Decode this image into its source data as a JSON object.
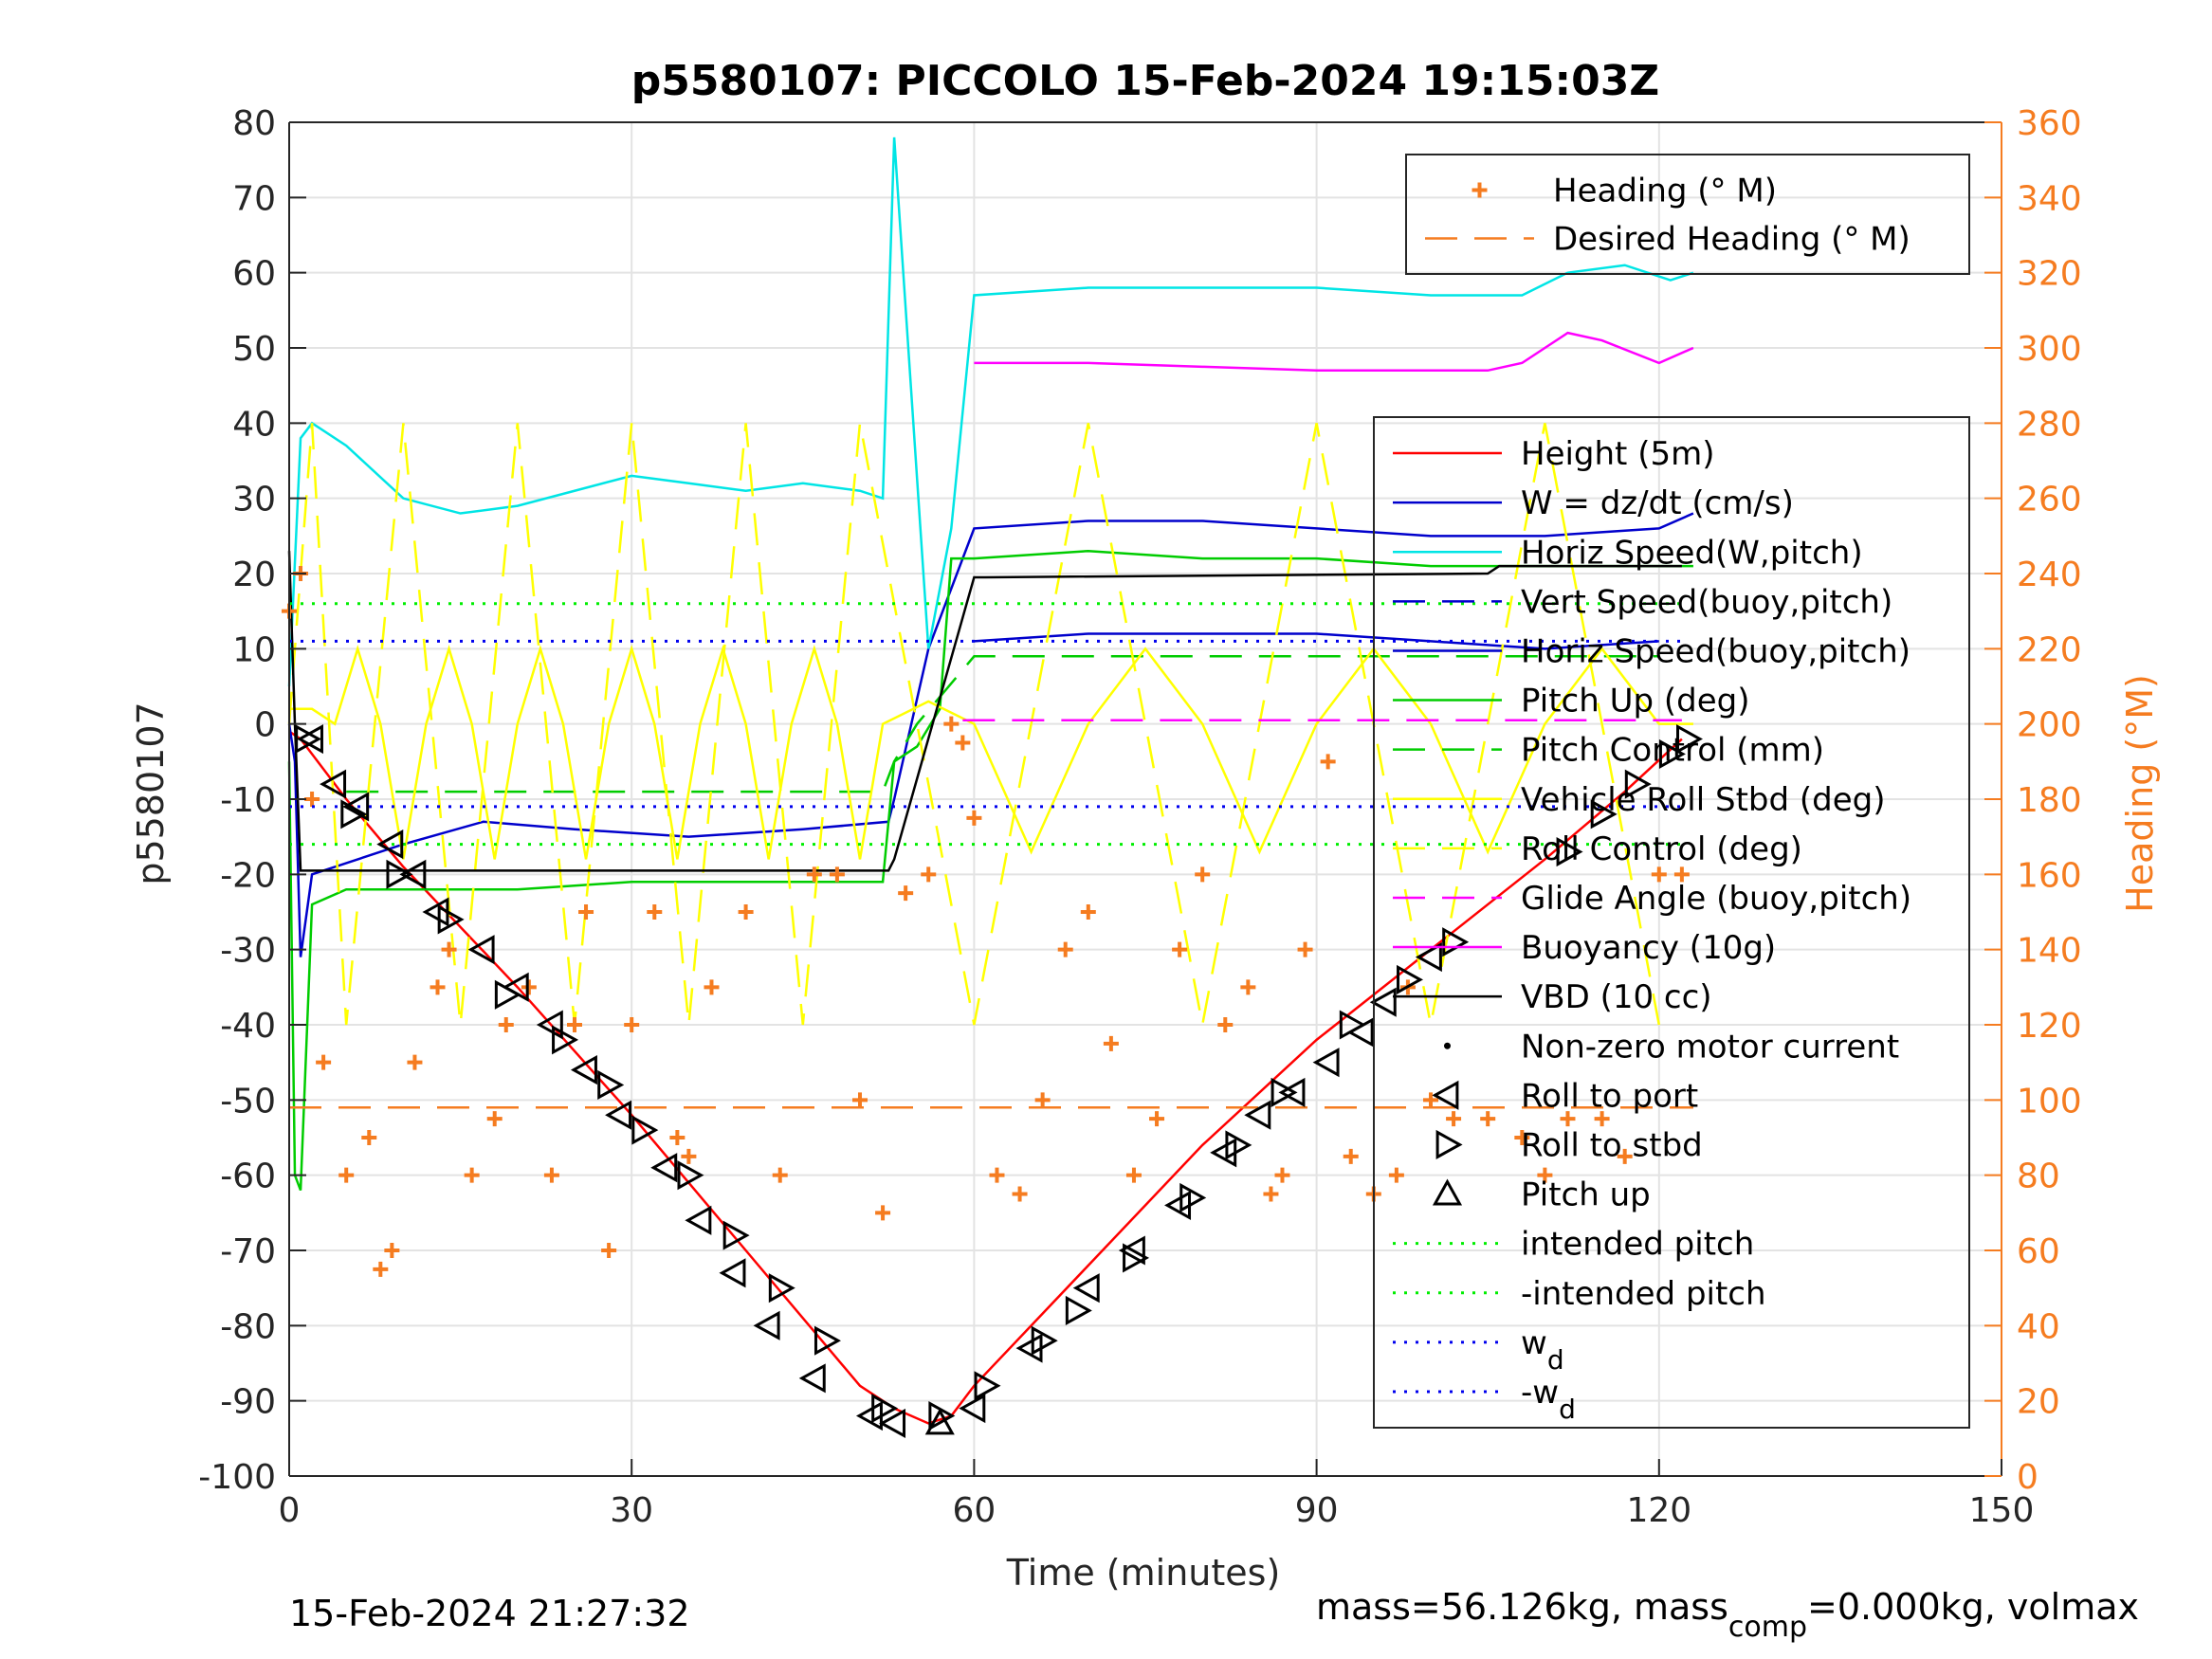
{
  "chart_data": {
    "type": "line",
    "title": "p5580107: PICCOLO 15-Feb-2024 19:15:03Z",
    "xlabel": "Time (minutes)",
    "ylabel": "p5580107",
    "ylabel_right": "Heading (°M)",
    "xlim": [
      0,
      150
    ],
    "ylim": [
      -100,
      80
    ],
    "ylim_right": [
      0,
      360
    ],
    "xticks": [
      "0",
      "30",
      "60",
      "90",
      "120",
      "150"
    ],
    "yticks": [
      "80",
      "70",
      "60",
      "50",
      "40",
      "30",
      "20",
      "10",
      "0",
      "-10",
      "-20",
      "-30",
      "-40",
      "-50",
      "-60",
      "-70",
      "-80",
      "-90",
      "-100"
    ],
    "yticks_right": [
      "360",
      "340",
      "320",
      "300",
      "280",
      "260",
      "240",
      "220",
      "200",
      "180",
      "160",
      "140",
      "120",
      "100",
      "80",
      "60",
      "40",
      "20",
      "0"
    ],
    "grid": true,
    "footer_left": "15-Feb-2024 21:27:32",
    "footer_right": "mass=56.126kg, mass",
    "footer_right_sub": "comp",
    "footer_right_tail": "=0.000kg, volmax",
    "legend_top": {
      "placement": "top-right",
      "entries": [
        {
          "label": "Heading (° M)",
          "color": "#f57c20",
          "style": "plus"
        },
        {
          "label": "Desired Heading (° M)",
          "color": "#f57c20",
          "style": "dashed"
        }
      ]
    },
    "legend_main": {
      "placement": "right",
      "entries": [
        {
          "label": "Height (5m)",
          "color": "#ff0000",
          "style": "solid"
        },
        {
          "label": "W = dz/dt (cm/s)",
          "color": "#0000cc",
          "style": "solid"
        },
        {
          "label": "Horiz Speed(W,pitch)",
          "color": "#00e5e5",
          "style": "solid"
        },
        {
          "label": "Vert Speed(buoy,pitch)",
          "color": "#0000cc",
          "style": "dashed"
        },
        {
          "label": "Horiz Speed(buoy,pitch)",
          "color": "#0000cc",
          "style": "solid"
        },
        {
          "label": "Pitch Up (deg)",
          "color": "#00cc00",
          "style": "solid"
        },
        {
          "label": "Pitch Control (mm)",
          "color": "#00cc00",
          "style": "dashed"
        },
        {
          "label": "Vehicle Roll Stbd (deg)",
          "color": "#ffff00",
          "style": "solid"
        },
        {
          "label": "Roll Control (deg)",
          "color": "#ffff00",
          "style": "dashed"
        },
        {
          "label": "Glide Angle (buoy,pitch)",
          "color": "#ff00ff",
          "style": "dashed"
        },
        {
          "label": "Buoyancy (10g)",
          "color": "#ff00ff",
          "style": "solid"
        },
        {
          "label": "VBD (10 cc)",
          "color": "#000000",
          "style": "solid"
        },
        {
          "label": "Non-zero motor current",
          "color": "#000000",
          "style": "dot"
        },
        {
          "label": "Roll to port",
          "color": "#000000",
          "style": "tri-left"
        },
        {
          "label": "Roll to stbd",
          "color": "#000000",
          "style": "tri-right"
        },
        {
          "label": "Pitch up",
          "color": "#000000",
          "style": "tri-up"
        },
        {
          "label": "intended pitch",
          "color": "#00ee00",
          "style": "dotted"
        },
        {
          "label": "-intended pitch",
          "color": "#00ee00",
          "style": "dotted"
        },
        {
          "label": "w",
          "sub": "d",
          "color": "#0000ee",
          "style": "dotted"
        },
        {
          "label": "-w",
          "sub": "d",
          "color": "#0000ee",
          "style": "dotted"
        }
      ]
    },
    "series": [
      {
        "name": "Height (5m)",
        "color": "#ff0000",
        "x": [
          0,
          1,
          5,
          10,
          20,
          30,
          40,
          50,
          53,
          56,
          58,
          60,
          70,
          80,
          90,
          100,
          110,
          117,
          122
        ],
        "y": [
          -1,
          -2,
          -10,
          -19,
          -35,
          -52,
          -70,
          -88,
          -91,
          -93,
          -92,
          -88,
          -72,
          -56,
          -42,
          -30,
          -18,
          -9,
          -2
        ]
      },
      {
        "name": "W = dz/dt (cm/s)",
        "color": "#0000cc",
        "x": [
          0,
          0.5,
          1,
          2,
          4,
          10,
          17,
          25,
          35,
          45,
          52.5,
          53,
          56,
          60,
          70,
          80,
          90,
          100,
          110,
          120,
          123
        ],
        "y": [
          0,
          -5,
          -31,
          -20,
          -19,
          -16,
          -13,
          -14,
          -15,
          -14,
          -13,
          -10,
          10,
          26,
          27,
          27,
          26,
          25,
          25,
          26,
          28
        ]
      },
      {
        "name": "Horiz Speed(W,pitch)",
        "color": "#00e5e5",
        "x": [
          0,
          1,
          2,
          5,
          10,
          15,
          20,
          25,
          30,
          35,
          40,
          45,
          50,
          52,
          53,
          56,
          58,
          60,
          70,
          80,
          90,
          100,
          108,
          112,
          117,
          121,
          123
        ],
        "y": [
          5,
          38,
          40,
          37,
          30,
          28,
          29,
          31,
          33,
          32,
          31,
          32,
          31,
          30,
          78,
          10,
          26,
          57,
          58,
          58,
          58,
          57,
          57,
          60,
          61,
          59,
          60
        ]
      },
      {
        "name": "Horiz Speed(buoy,pitch)",
        "color": "#0000cc",
        "x": [
          60,
          70,
          80,
          90,
          100,
          110,
          120
        ],
        "y": [
          11,
          12,
          12,
          12,
          11,
          10,
          11
        ]
      },
      {
        "name": "Pitch Up (deg)",
        "color": "#00cc00",
        "x": [
          0,
          0.5,
          1,
          2,
          5,
          10,
          20,
          30,
          40,
          52,
          53,
          55,
          57,
          58,
          60,
          70,
          80,
          90,
          100,
          110,
          120,
          123
        ],
        "y": [
          -5,
          -60,
          -62,
          -24,
          -22,
          -22,
          -22,
          -21,
          -21,
          -21,
          -5,
          -3,
          2,
          22,
          22,
          23,
          22,
          22,
          21,
          21,
          21,
          21
        ]
      },
      {
        "name": "Pitch Control (mm)",
        "color": "#00cc00",
        "x": [
          5,
          52,
          53,
          55,
          60,
          120
        ],
        "y": [
          -9,
          -9,
          -5,
          0,
          9,
          9
        ]
      },
      {
        "name": "Vehicle Roll Stbd (deg)",
        "color": "#ffff00",
        "x": [
          0,
          2,
          4,
          6,
          8,
          10,
          12,
          14,
          16,
          18,
          20,
          22,
          24,
          26,
          28,
          30,
          32,
          34,
          36,
          38,
          40,
          42,
          44,
          46,
          48,
          50,
          52,
          56,
          60,
          65,
          70,
          75,
          80,
          85,
          90,
          95,
          100,
          105,
          110,
          115,
          120,
          123
        ],
        "y": [
          2,
          2,
          0,
          10,
          0,
          -18,
          0,
          10,
          0,
          -18,
          0,
          10,
          0,
          -18,
          0,
          10,
          0,
          -18,
          0,
          10,
          0,
          -18,
          0,
          10,
          0,
          -18,
          0,
          3,
          0,
          -17,
          0,
          10,
          0,
          -17,
          0,
          10,
          0,
          -17,
          0,
          10,
          0,
          0
        ]
      },
      {
        "name": "Roll Control (deg)",
        "color": "#ffff00",
        "x": [
          0,
          2,
          5,
          10,
          15,
          20,
          25,
          30,
          35,
          40,
          45,
          50,
          60,
          70,
          80,
          90,
          100,
          110,
          120
        ],
        "y": [
          0,
          40,
          -40,
          40,
          -40,
          40,
          -40,
          40,
          -40,
          40,
          -40,
          40,
          -40,
          40,
          -40,
          40,
          -40,
          40,
          -40
        ]
      },
      {
        "name": "Glide Angle (buoy,pitch)",
        "color": "#ff00ff",
        "x": [
          59,
          122
        ],
        "y": [
          0.5,
          0.5
        ]
      },
      {
        "name": "Buoyancy (10g)",
        "color": "#ff00ff",
        "x": [
          60,
          70,
          80,
          90,
          100,
          105,
          108,
          110,
          112,
          115,
          120,
          123
        ],
        "y": [
          48,
          48,
          47.5,
          47,
          47,
          47,
          48,
          50,
          52,
          51,
          48,
          50
        ]
      },
      {
        "name": "VBD (10 cc)",
        "color": "#000000",
        "x": [
          0,
          0.5,
          1,
          2,
          52.5,
          53,
          60,
          61,
          105,
          106,
          122
        ],
        "y": [
          23,
          0,
          -19.5,
          -19.5,
          -19.5,
          -18,
          19.5,
          19.5,
          20,
          21,
          21
        ]
      },
      {
        "name": "Heading (° M)",
        "color": "#f57c20",
        "x": [
          0,
          1,
          2,
          3,
          5,
          7,
          8,
          9,
          11,
          13,
          14,
          16,
          18,
          19,
          21,
          23,
          25,
          26,
          28,
          30,
          32,
          34,
          35,
          37,
          40,
          43,
          46,
          48,
          50,
          52,
          54,
          56,
          58,
          59,
          60,
          62,
          64,
          66,
          68,
          70,
          72,
          74,
          76,
          78,
          80,
          82,
          84,
          86,
          87,
          89,
          91,
          93,
          95,
          97,
          98,
          100,
          102,
          105,
          108,
          110,
          112,
          115,
          117,
          120,
          122
        ],
        "y": [
          230,
          240,
          180,
          110,
          80,
          90,
          55,
          60,
          110,
          130,
          140,
          80,
          95,
          120,
          130,
          80,
          120,
          150,
          60,
          120,
          150,
          90,
          85,
          130,
          150,
          80,
          160,
          160,
          100,
          70,
          155,
          160,
          200,
          195,
          175,
          80,
          75,
          100,
          140,
          150,
          115,
          80,
          95,
          140,
          160,
          120,
          130,
          75,
          80,
          140,
          190,
          85,
          75,
          80,
          130,
          100,
          95,
          95,
          90,
          80,
          95,
          95,
          85,
          160,
          160
        ]
      },
      {
        "name": "Desired Heading (° M)",
        "color": "#f57c20",
        "x": [
          0,
          123
        ],
        "y": [
          98,
          98
        ]
      },
      {
        "name": "intended pitch",
        "color": "#00ee00",
        "x": [
          0,
          122
        ],
        "y": [
          16,
          16
        ]
      },
      {
        "name": "-intended pitch",
        "color": "#00ee00",
        "x": [
          0,
          122
        ],
        "y": [
          -16,
          -16
        ]
      },
      {
        "name": "w",
        "color": "#0000ee",
        "x": [
          0,
          122
        ],
        "y": [
          11,
          11
        ]
      },
      {
        "name": "-w",
        "color": "#0000ee",
        "x": [
          0,
          122
        ],
        "y": [
          -11,
          -11
        ]
      },
      {
        "name": "Roll to port",
        "color": "#000000",
        "x": [
          2,
          4,
          6,
          9,
          11,
          13,
          17,
          20,
          23,
          26,
          29,
          33,
          36,
          39,
          42,
          46,
          51,
          53,
          60,
          65,
          70,
          74,
          78,
          82,
          85,
          88,
          91,
          94,
          96,
          100
        ],
        "y": [
          -2,
          -8,
          -11,
          -16,
          -20,
          -25,
          -30,
          -35,
          -40,
          -46,
          -52,
          -59,
          -66,
          -73,
          -80,
          -87,
          -92,
          -93,
          -91,
          -83,
          -75,
          -70,
          -64,
          -57,
          -52,
          -49,
          -45,
          -41,
          -37,
          -31
        ]
      },
      {
        "name": "Roll to stbd",
        "color": "#000000",
        "x": [
          1.5,
          5.5,
          9.5,
          14,
          19,
          24,
          28,
          31,
          35,
          39,
          43,
          47,
          52,
          57,
          61,
          66,
          69,
          74,
          79,
          83,
          87,
          93,
          98,
          102,
          112,
          115,
          118,
          121,
          122.5
        ],
        "y": [
          -2,
          -12,
          -20,
          -26,
          -36,
          -42,
          -48,
          -54,
          -60,
          -68,
          -75,
          -82,
          -91,
          -92,
          -88,
          -82,
          -78,
          -71,
          -63,
          -56,
          -49,
          -40,
          -34,
          -29,
          -17,
          -12,
          -8,
          -4,
          -2
        ]
      },
      {
        "name": "Pitch up",
        "color": "#000000",
        "x": [
          57
        ],
        "y": [
          -93
        ]
      }
    ]
  }
}
